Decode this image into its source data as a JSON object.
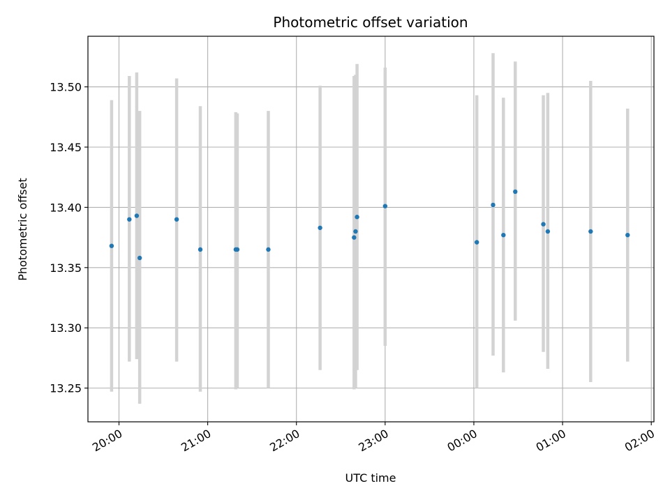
{
  "chart_data": {
    "type": "scatter",
    "title": "Photometric offset variation",
    "xlabel": "UTC time",
    "ylabel": "Photometric offset",
    "x_tick_labels": [
      "20:00",
      "21:00",
      "22:00",
      "23:00",
      "00:00",
      "01:00",
      "02:00"
    ],
    "y_tick_labels": [
      "13.25",
      "13.30",
      "13.35",
      "13.40",
      "13.45",
      "13.50"
    ],
    "y_ticks": [
      13.25,
      13.3,
      13.35,
      13.4,
      13.45,
      13.5
    ],
    "xlim_hours": [
      19.65,
      26.03
    ],
    "ylim": [
      13.222,
      13.542
    ],
    "grid": true,
    "point_color": "#1f77b4",
    "errorbar_color": "#d3d3d3",
    "points": [
      {
        "x": "19:55",
        "y": 13.368,
        "ylow": 13.247,
        "yhigh": 13.489
      },
      {
        "x": "20:07",
        "y": 13.39,
        "ylow": 13.272,
        "yhigh": 13.509
      },
      {
        "x": "20:12",
        "y": 13.393,
        "ylow": 13.274,
        "yhigh": 13.512
      },
      {
        "x": "20:14",
        "y": 13.358,
        "ylow": 13.237,
        "yhigh": 13.48
      },
      {
        "x": "20:39",
        "y": 13.39,
        "ylow": 13.272,
        "yhigh": 13.507
      },
      {
        "x": "20:55",
        "y": 13.365,
        "ylow": 13.247,
        "yhigh": 13.484
      },
      {
        "x": "21:19",
        "y": 13.365,
        "ylow": 13.249,
        "yhigh": 13.479
      },
      {
        "x": "21:20",
        "y": 13.365,
        "ylow": 13.25,
        "yhigh": 13.478
      },
      {
        "x": "21:41",
        "y": 13.365,
        "ylow": 13.25,
        "yhigh": 13.48
      },
      {
        "x": "22:16",
        "y": 13.383,
        "ylow": 13.265,
        "yhigh": 13.501
      },
      {
        "x": "22:39",
        "y": 13.375,
        "ylow": 13.249,
        "yhigh": 13.509
      },
      {
        "x": "22:40",
        "y": 13.38,
        "ylow": 13.25,
        "yhigh": 13.51
      },
      {
        "x": "22:41",
        "y": 13.392,
        "ylow": 13.265,
        "yhigh": 13.519
      },
      {
        "x": "23:00",
        "y": 13.401,
        "ylow": 13.285,
        "yhigh": 13.516
      },
      {
        "x": "00:02",
        "y": 13.371,
        "ylow": 13.25,
        "yhigh": 13.493
      },
      {
        "x": "00:13",
        "y": 13.402,
        "ylow": 13.277,
        "yhigh": 13.528
      },
      {
        "x": "00:20",
        "y": 13.377,
        "ylow": 13.263,
        "yhigh": 13.491
      },
      {
        "x": "00:28",
        "y": 13.413,
        "ylow": 13.306,
        "yhigh": 13.521
      },
      {
        "x": "00:47",
        "y": 13.386,
        "ylow": 13.28,
        "yhigh": 13.493
      },
      {
        "x": "00:50",
        "y": 13.38,
        "ylow": 13.266,
        "yhigh": 13.495
      },
      {
        "x": "01:19",
        "y": 13.38,
        "ylow": 13.255,
        "yhigh": 13.505
      },
      {
        "x": "01:44",
        "y": 13.377,
        "ylow": 13.272,
        "yhigh": 13.482
      }
    ]
  }
}
